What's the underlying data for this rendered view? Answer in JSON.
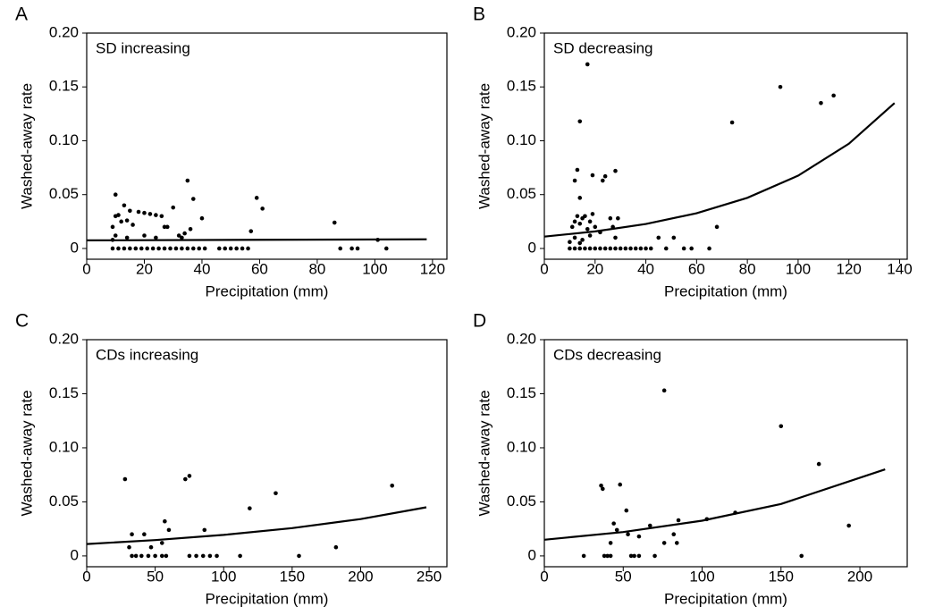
{
  "chart_data": [
    {
      "type": "scatter",
      "panel": "A",
      "label": "SD increasing",
      "xlabel": "Precipitation (mm)",
      "ylabel": "Washed-away rate",
      "color": "#000000",
      "x": [
        10,
        10,
        9,
        11,
        12,
        13,
        14,
        15,
        16,
        18,
        20,
        22,
        24,
        26,
        27,
        28,
        30,
        32,
        34,
        35,
        36,
        37,
        40,
        57,
        59,
        61,
        86,
        101,
        10,
        14,
        20,
        24,
        33,
        9,
        9,
        11,
        13,
        15,
        17,
        19,
        21,
        23,
        25,
        27,
        29,
        31,
        33,
        35,
        37,
        39,
        41,
        46,
        48,
        50,
        52,
        54,
        56,
        88,
        92,
        94,
        104
      ],
      "values": [
        0.05,
        0.03,
        0.02,
        0.031,
        0.025,
        0.04,
        0.026,
        0.035,
        0.022,
        0.034,
        0.033,
        0.032,
        0.031,
        0.03,
        0.02,
        0.02,
        0.038,
        0.012,
        0.014,
        0.063,
        0.018,
        0.046,
        0.028,
        0.016,
        0.047,
        0.037,
        0.024,
        0.008,
        0.012,
        0.01,
        0.012,
        0.01,
        0.01,
        0.008,
        0,
        0,
        0,
        0,
        0,
        0,
        0,
        0,
        0,
        0,
        0,
        0,
        0,
        0,
        0,
        0,
        0,
        0,
        0,
        0,
        0,
        0,
        0,
        0,
        0,
        0,
        0
      ],
      "fit_x": [
        0,
        118
      ],
      "fit_values": [
        0.0075,
        0.0085
      ],
      "xlim": [
        0,
        125
      ],
      "ylim": [
        -0.01,
        0.2
      ],
      "xticks": [
        0,
        20,
        40,
        60,
        80,
        100,
        120
      ],
      "yticks": [
        0,
        0.05,
        {
          "value": 0.1,
          "label": "0.10"
        },
        0.15,
        {
          "value": 0.2,
          "label": "0.20"
        }
      ]
    },
    {
      "type": "scatter",
      "panel": "B",
      "label": "SD decreasing",
      "xlabel": "Precipitation (mm)",
      "ylabel": "Washed-away rate",
      "color": "#000000",
      "x": [
        17,
        14,
        12,
        13,
        14,
        19,
        23,
        24,
        28,
        11,
        12,
        13,
        14,
        15,
        16,
        17,
        18,
        19,
        20,
        22,
        26,
        27,
        29,
        12,
        15,
        18,
        28,
        45,
        51,
        68,
        74,
        93,
        109,
        114,
        10,
        14,
        10,
        12,
        14,
        16,
        18,
        20,
        22,
        24,
        26,
        28,
        30,
        32,
        34,
        36,
        38,
        40,
        42,
        48,
        55,
        58,
        65
      ],
      "values": [
        0.171,
        0.118,
        0.063,
        0.073,
        0.047,
        0.068,
        0.063,
        0.067,
        0.072,
        0.02,
        0.025,
        0.03,
        0.023,
        0.028,
        0.03,
        0.018,
        0.025,
        0.032,
        0.02,
        0.015,
        0.028,
        0.02,
        0.028,
        0.01,
        0.008,
        0.012,
        0.01,
        0.01,
        0.01,
        0.02,
        0.117,
        0.15,
        0.135,
        0.142,
        0.006,
        0.005,
        0,
        0,
        0,
        0,
        0,
        0,
        0,
        0,
        0,
        0,
        0,
        0,
        0,
        0,
        0,
        0,
        0,
        0,
        0,
        0,
        0
      ],
      "fit_x": [
        0,
        20,
        40,
        60,
        80,
        100,
        120,
        138
      ],
      "fit_values": [
        0.011,
        0.0158,
        0.0227,
        0.0327,
        0.047,
        0.0676,
        0.0972,
        0.135
      ],
      "xlim": [
        0,
        143
      ],
      "ylim": [
        -0.01,
        0.2
      ],
      "xticks": [
        0,
        20,
        40,
        60,
        80,
        100,
        120,
        140
      ],
      "yticks": [
        0,
        0.05,
        {
          "value": 0.1,
          "label": "0.10"
        },
        0.15,
        {
          "value": 0.2,
          "label": "0.20"
        }
      ]
    },
    {
      "type": "scatter",
      "panel": "C",
      "label": "CDs increasing",
      "xlabel": "Precipitation (mm)",
      "ylabel": "Washed-away rate",
      "color": "#000000",
      "x": [
        28,
        33,
        31,
        42,
        47,
        55,
        57,
        60,
        72,
        75,
        86,
        119,
        138,
        182,
        223,
        33,
        36,
        40,
        45,
        50,
        55,
        58,
        75,
        80,
        85,
        90,
        95,
        112,
        155
      ],
      "values": [
        0.071,
        0.02,
        0.008,
        0.02,
        0.008,
        0.012,
        0.032,
        0.024,
        0.071,
        0.074,
        0.024,
        0.044,
        0.058,
        0.008,
        0.065,
        0,
        0,
        0,
        0,
        0,
        0,
        0,
        0,
        0,
        0,
        0,
        0,
        0,
        0
      ],
      "fit_x": [
        0,
        50,
        100,
        150,
        200,
        248
      ],
      "fit_values": [
        0.011,
        0.0146,
        0.0194,
        0.0257,
        0.0341,
        0.045
      ],
      "xlim": [
        0,
        263
      ],
      "ylim": [
        -0.01,
        0.2
      ],
      "xticks": [
        0,
        50,
        100,
        150,
        200,
        250
      ],
      "yticks": [
        0,
        0.05,
        {
          "value": 0.1,
          "label": "0.10"
        },
        0.15,
        {
          "value": 0.2,
          "label": "0.20"
        }
      ]
    },
    {
      "type": "scatter",
      "panel": "D",
      "label": "CDs decreasing",
      "xlabel": "Precipitation (mm)",
      "ylabel": "Washed-away rate",
      "color": "#000000",
      "x": [
        76,
        150,
        174,
        193,
        36,
        37,
        48,
        52,
        44,
        46,
        42,
        53,
        60,
        67,
        76,
        82,
        85,
        84,
        103,
        121,
        25,
        38,
        40,
        42,
        55,
        57,
        60,
        70,
        163
      ],
      "values": [
        0.153,
        0.12,
        0.085,
        0.028,
        0.065,
        0.062,
        0.066,
        0.042,
        0.03,
        0.024,
        0.012,
        0.02,
        0.018,
        0.028,
        0.012,
        0.02,
        0.033,
        0.012,
        0.034,
        0.04,
        0,
        0,
        0,
        0,
        0,
        0,
        0,
        0,
        0
      ],
      "fit_x": [
        0,
        50,
        100,
        150,
        216
      ],
      "fit_values": [
        0.015,
        0.0221,
        0.0326,
        0.048,
        0.08
      ],
      "xlim": [
        0,
        230
      ],
      "ylim": [
        -0.01,
        0.2
      ],
      "xticks": [
        0,
        50,
        100,
        150,
        200
      ],
      "yticks": [
        0,
        0.05,
        {
          "value": 0.1,
          "label": "0.10"
        },
        0.15,
        {
          "value": 0.2,
          "label": "0.20"
        }
      ]
    }
  ]
}
